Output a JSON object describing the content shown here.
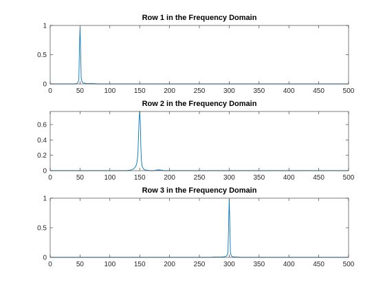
{
  "figure": {
    "background": "#ffffff",
    "axes_color": "#262626",
    "line_color": "#0072BD"
  },
  "chart_data": [
    {
      "type": "line",
      "title": "Row 1 in the Frequency Domain",
      "xlabel": "",
      "ylabel": "",
      "xlim": [
        0,
        500
      ],
      "ylim": [
        0,
        1
      ],
      "xticks": [
        0,
        50,
        100,
        150,
        200,
        250,
        300,
        350,
        400,
        450,
        500
      ],
      "yticks": [
        0,
        0.5,
        1
      ],
      "ytick_labels": [
        "0",
        "0.5",
        "1"
      ],
      "grid": false,
      "legend": "none",
      "series": [
        {
          "x": [
            0,
            40,
            44,
            46,
            47,
            48,
            49,
            50,
            51,
            52,
            53,
            54,
            56,
            60,
            65,
            70,
            75,
            80,
            500
          ],
          "y": [
            0,
            0,
            0.005,
            0.02,
            0.04,
            0.08,
            0.58,
            0.96,
            0.56,
            0.1,
            0.05,
            0.03,
            0.015,
            0.008,
            0.005,
            0.006,
            0.003,
            0,
            0
          ]
        }
      ]
    },
    {
      "type": "line",
      "title": "Row 2 in the Frequency Domain",
      "xlabel": "",
      "ylabel": "",
      "xlim": [
        0,
        500
      ],
      "ylim": [
        0,
        0.77
      ],
      "xticks": [
        0,
        50,
        100,
        150,
        200,
        250,
        300,
        350,
        400,
        450,
        500
      ],
      "yticks": [
        0,
        0.2,
        0.4,
        0.6
      ],
      "ytick_labels": [
        "0",
        "0.2",
        "0.4",
        "0.6"
      ],
      "grid": false,
      "legend": "none",
      "series": [
        {
          "x": [
            0,
            128,
            133,
            137,
            140,
            143,
            145,
            146,
            147,
            148,
            149,
            150,
            151,
            152,
            153,
            154,
            156,
            158,
            162,
            166,
            170,
            175,
            178,
            181,
            185,
            190,
            500
          ],
          "y": [
            0,
            0,
            0.005,
            0.012,
            0.025,
            0.05,
            0.09,
            0.14,
            0.22,
            0.45,
            0.66,
            0.77,
            0.64,
            0.3,
            0.12,
            0.06,
            0.025,
            0.012,
            0.005,
            0.002,
            0,
            0,
            0.008,
            0.01,
            0.008,
            0,
            0
          ]
        }
      ]
    },
    {
      "type": "line",
      "title": "Row 3 in the Frequency Domain",
      "xlabel": "",
      "ylabel": "",
      "xlim": [
        0,
        500
      ],
      "ylim": [
        0,
        1
      ],
      "xticks": [
        0,
        50,
        100,
        150,
        200,
        250,
        300,
        350,
        400,
        450,
        500
      ],
      "yticks": [
        0,
        0.5,
        1
      ],
      "ytick_labels": [
        "0",
        "0.5",
        "1"
      ],
      "grid": false,
      "legend": "none",
      "series": [
        {
          "x": [
            0,
            270,
            275,
            280,
            285,
            290,
            294,
            296,
            297,
            298,
            299,
            300,
            301,
            302,
            303,
            304,
            306,
            310,
            315,
            320,
            500
          ],
          "y": [
            0,
            0,
            0.005,
            0.005,
            0.004,
            0.008,
            0.015,
            0.03,
            0.05,
            0.1,
            0.55,
            0.98,
            0.58,
            0.1,
            0.04,
            0.02,
            0.01,
            0.006,
            0.004,
            0,
            0
          ]
        }
      ]
    }
  ]
}
